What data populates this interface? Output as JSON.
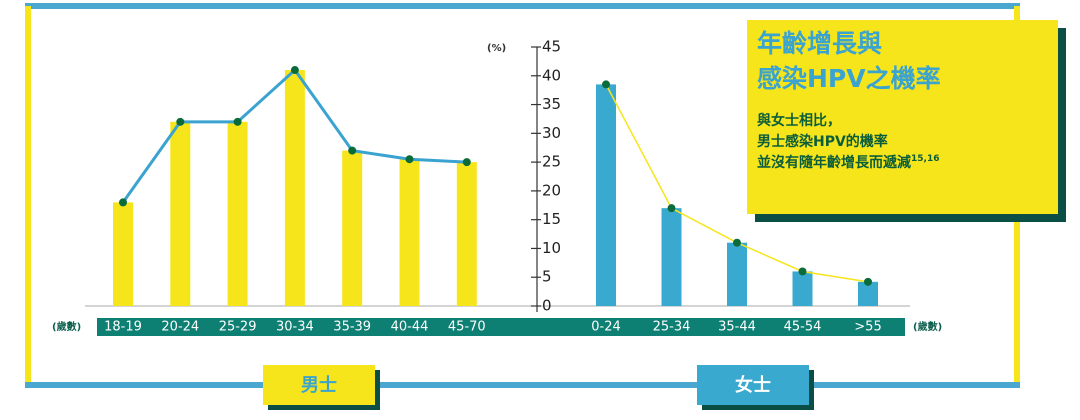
{
  "callout": {
    "title_lines": [
      "年齡增長與",
      "感染HPV之機率"
    ],
    "lines": [
      "與女士相比，",
      "男士感染HPV的機率",
      "並沒有隨年齡增長而遞減"
    ],
    "superscript": "15,16"
  },
  "y_unit": "(%)",
  "x_unit": "(歲數)",
  "chart_data": [
    {
      "type": "bar",
      "label": "男士",
      "categories": [
        "18-19",
        "20-24",
        "25-29",
        "30-34",
        "35-39",
        "40-44",
        "45-70"
      ],
      "values": [
        18,
        32,
        32,
        41,
        27,
        25.5,
        25
      ],
      "color": "#f7e51b",
      "line_color": "#3aa3cf",
      "ylim": [
        0,
        45
      ],
      "yticks": [
        0,
        5,
        10,
        15,
        20,
        25,
        30,
        35,
        40,
        45
      ]
    },
    {
      "type": "bar",
      "label": "女士",
      "categories": [
        "0-24",
        "25-34",
        "35-44",
        "45-54",
        ">55"
      ],
      "values": [
        38.5,
        17,
        11,
        6,
        4.2
      ],
      "color": "#3aa9cf",
      "line_color": "#f7e51b",
      "ylim": [
        0,
        45
      ],
      "yticks": [
        0,
        5,
        10,
        15,
        20,
        25,
        30,
        35,
        40,
        45
      ]
    }
  ]
}
